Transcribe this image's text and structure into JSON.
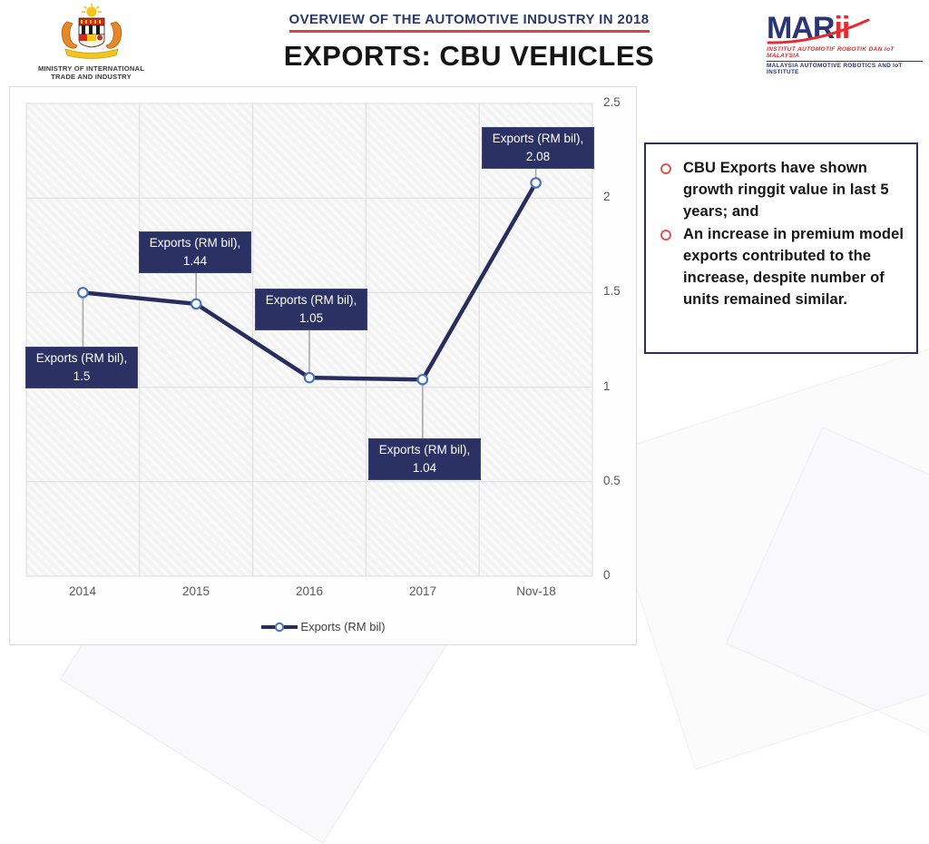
{
  "header": {
    "ministry_logo": {
      "name": "ministry-of-international-trade-and-industry-crest",
      "line1": "MINISTRY OF INTERNATIONAL",
      "line2": "TRADE AND INDUSTRY"
    },
    "overview_title": "OVERVIEW OF THE AUTOMOTIVE INDUSTRY IN 2018",
    "page_title": "EXPORTS: CBU VEHICLES",
    "marii_logo": {
      "wordmark_navy": "MAR",
      "wordmark_red": "ii",
      "tagline1": "INSTITUT AUTOMOTIF ROBOTIK DAN IoT MALAYSIA",
      "tagline2": "MALAYSIA AUTOMOTIVE ROBOTICS AND IoT INSTITUTE"
    }
  },
  "chart_data": {
    "type": "line",
    "title": "",
    "categories": [
      "2014",
      "2015",
      "2016",
      "2017",
      "Nov-18"
    ],
    "series": [
      {
        "name": "Exports (RM bil)",
        "values": [
          1.5,
          1.44,
          1.05,
          1.04,
          2.08
        ]
      }
    ],
    "data_label_prefix": "Exports (RM bil),",
    "data_labels": [
      "1.5",
      "1.44",
      "1.05",
      "1.04",
      "2.08"
    ],
    "ylim": [
      0,
      2.5
    ],
    "ytick_values": [
      2.5,
      2,
      1.5,
      1,
      0.5,
      0
    ],
    "ytick_labels": [
      "2.5",
      "2",
      "1.5",
      "1",
      "0.5",
      "0"
    ],
    "grid": "on",
    "legend": "Exports (RM bil)",
    "legend_position": "bottom",
    "colors": {
      "line": "#272d5e",
      "marker_ring": "#4472c4",
      "label_bg": "#2b3162",
      "grid": "#dddddd",
      "leader": "#a9a9a9",
      "plot_fill": "#f3f3f3"
    }
  },
  "notes_panel": {
    "bullets": [
      {
        "text": "CBU Exports have shown growth ringgit value in last 5 years; and"
      },
      {
        "text": "An increase in premium model exports contributed to the increase, despite number of units remained similar."
      }
    ]
  }
}
